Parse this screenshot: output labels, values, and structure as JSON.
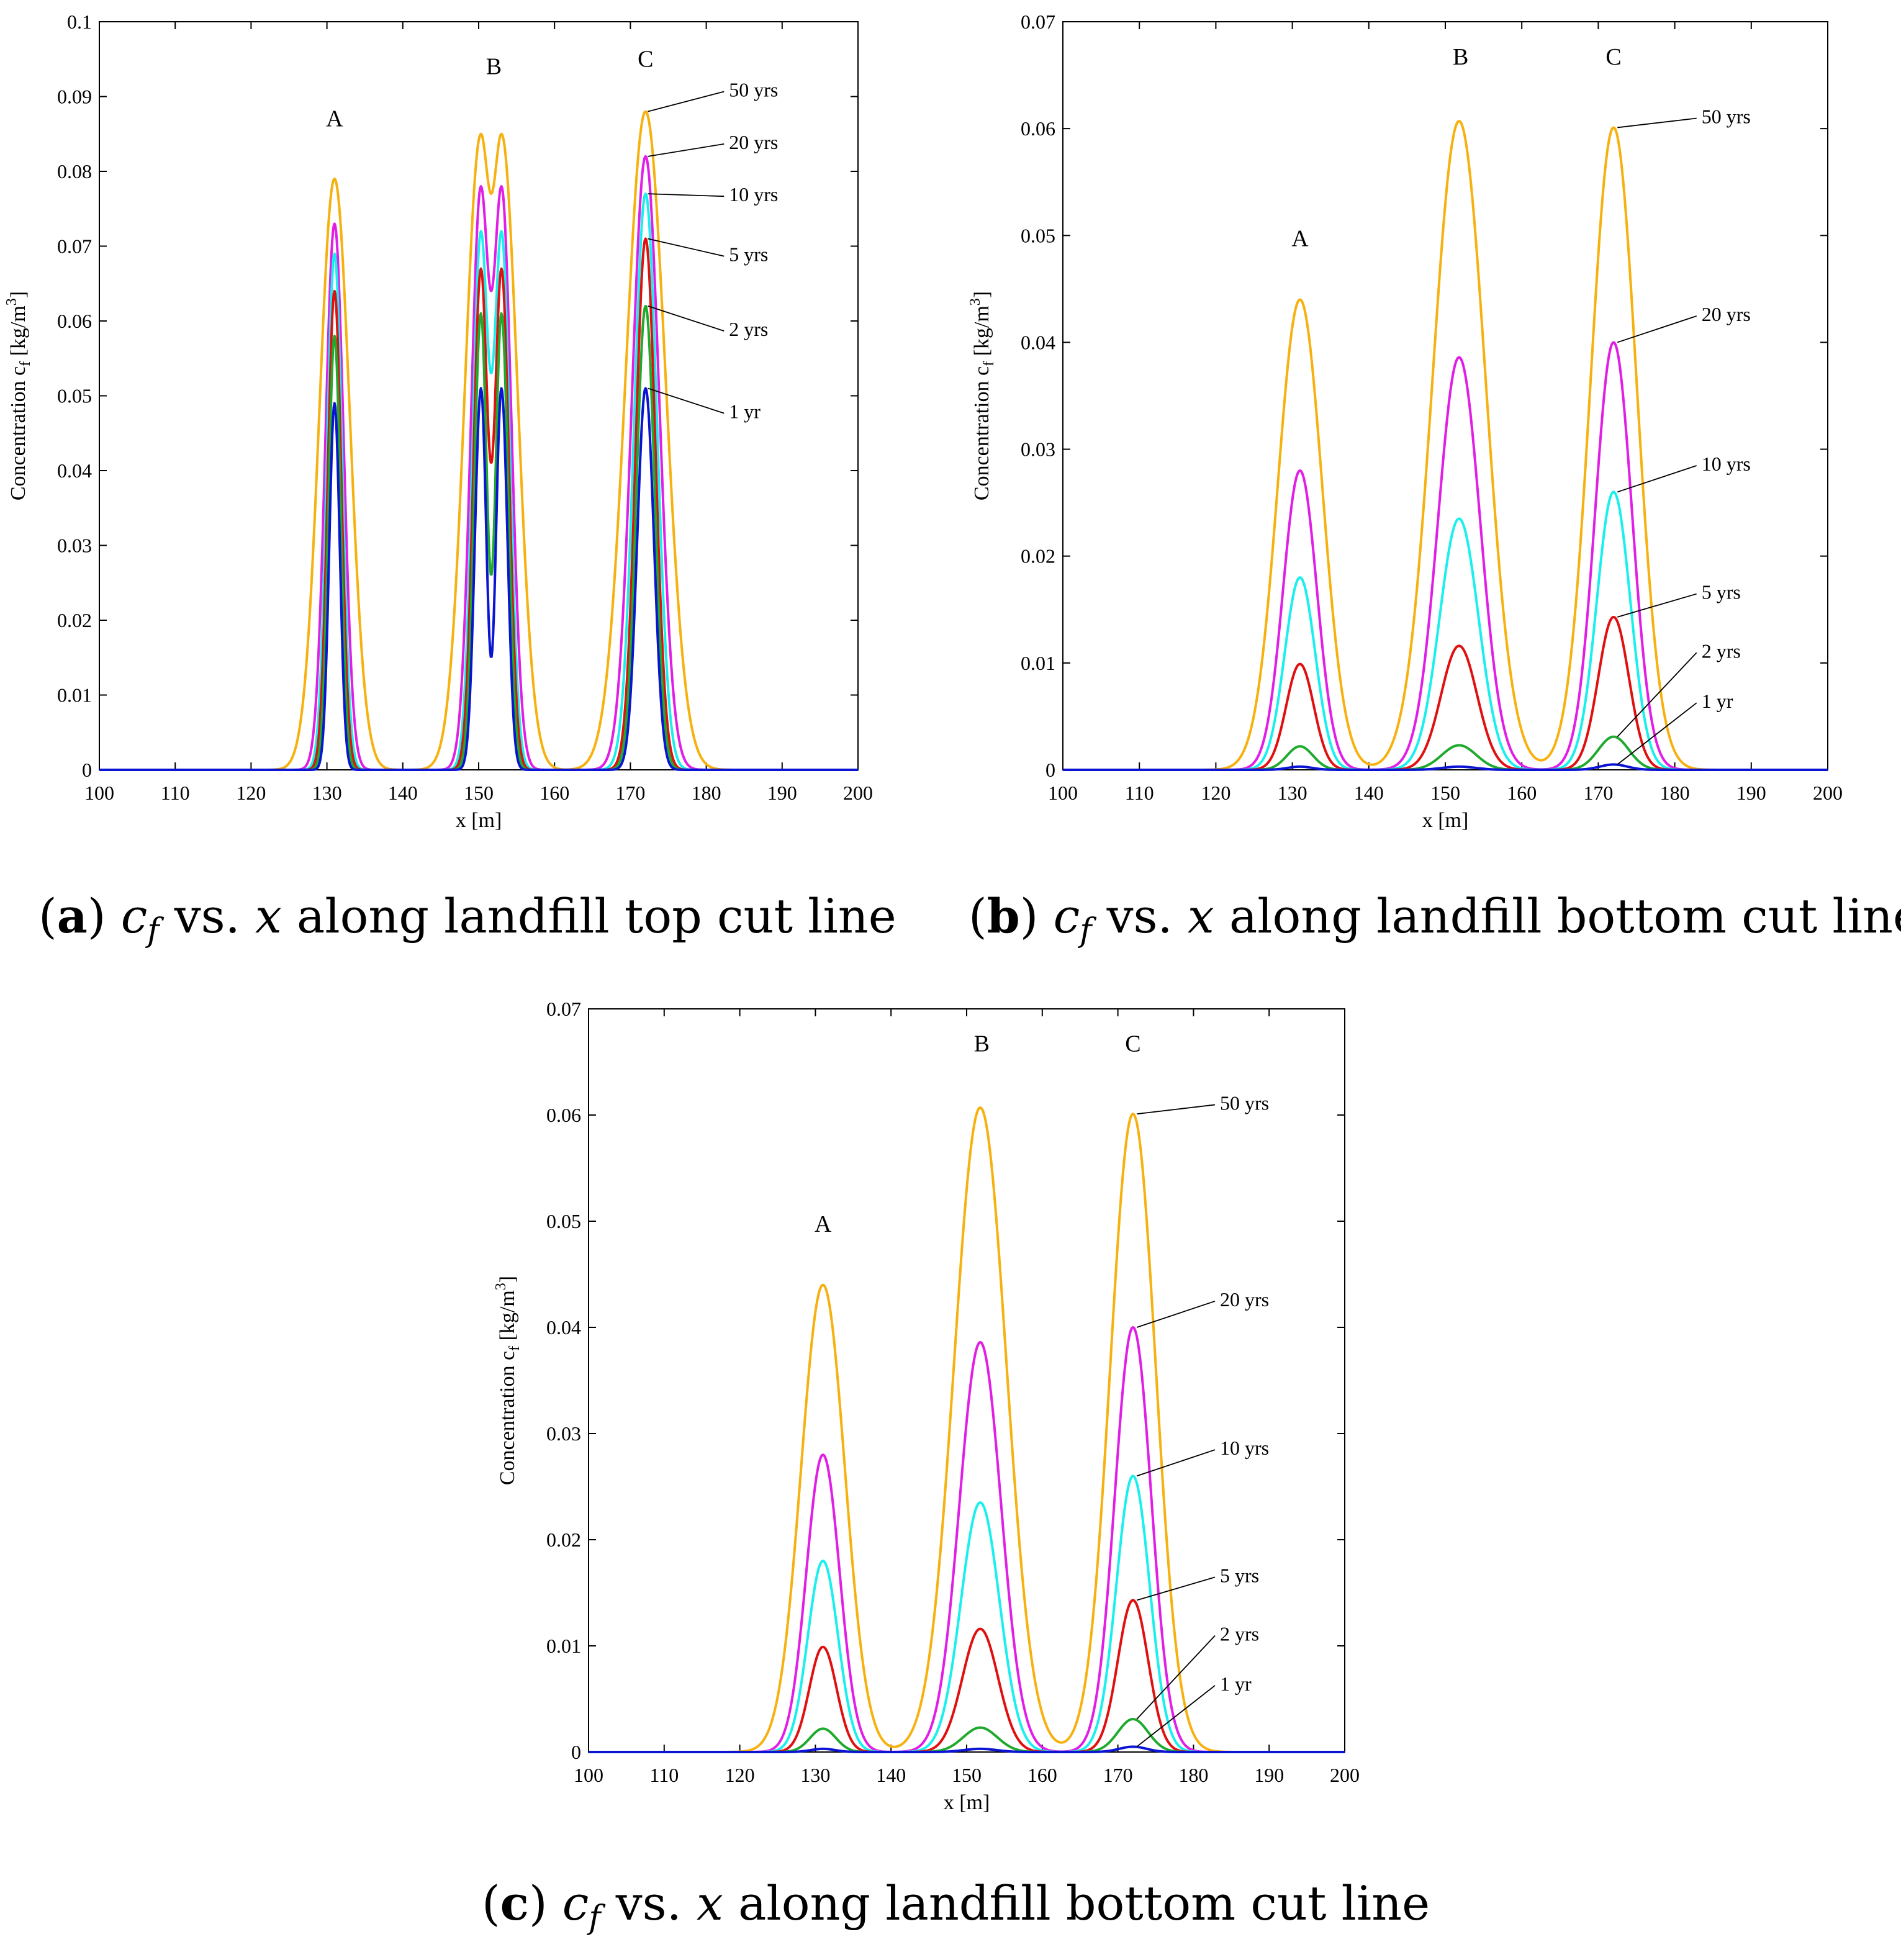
{
  "colors": {
    "1 yr": "#0a14d2",
    "2 yrs": "#1faa2e",
    "5 yrs": "#e01010",
    "10 yrs": "#19f0ee",
    "20 yrs": "#e11ee6",
    "50 yrs": "#f7b10f"
  },
  "captions": [
    {
      "id": "a",
      "label": "a",
      "var1": "c",
      "sub": "f",
      "mid": "vs.",
      "var2": "x",
      "rest": "along landfill top cut line"
    },
    {
      "id": "b",
      "label": "b",
      "var1": "c",
      "sub": "f",
      "mid": "vs.",
      "var2": "x",
      "rest": "along landfill bottom cut line"
    },
    {
      "id": "c",
      "label": "c",
      "var1": "c",
      "sub": "f",
      "mid": "vs.",
      "var2": "x",
      "rest": "along landfill bottom cut line"
    }
  ],
  "chart_data": [
    {
      "id": "a",
      "type": "line",
      "xlabel": "x [m]",
      "ylabel_main": "Concentration c",
      "ylabel_sub": "f",
      "ylabel_unit": " [kg/m",
      "ylabel_sup": "3",
      "ylabel_end": "]",
      "xlim": [
        100,
        200
      ],
      "ylim": [
        0,
        0.1
      ],
      "xticks": [
        "100",
        "110",
        "120",
        "130",
        "140",
        "150",
        "160",
        "170",
        "180",
        "190",
        "200"
      ],
      "yticks": [
        "0",
        "0.01",
        "0.02",
        "0.03",
        "0.04",
        "0.05",
        "0.06",
        "0.07",
        "0.08",
        "0.09",
        "0.1"
      ],
      "peak_labels": [
        {
          "text": "A",
          "x": 131,
          "y": 0.086
        },
        {
          "text": "B",
          "x": 152,
          "y": 0.093
        },
        {
          "text": "C",
          "x": 172,
          "y": 0.094
        }
      ],
      "series": [
        {
          "name": "1 yr",
          "sigmaA": 0.7,
          "sigmaC": 1.1,
          "peaks": [
            0.049,
            0.051,
            0.051
          ],
          "valleyB": 0.015,
          "label": "1 yr",
          "label_pos": [
            183,
            0.047
          ],
          "arrow_to": [
            172.3,
            0.051
          ]
        },
        {
          "name": "2 yrs",
          "sigmaA": 0.8,
          "sigmaC": 1.2,
          "peaks": [
            0.058,
            0.061,
            0.062
          ],
          "valleyB": 0.026,
          "label": "2 yrs",
          "label_pos": [
            183,
            0.058
          ],
          "arrow_to": [
            172.3,
            0.062
          ]
        },
        {
          "name": "5 yrs",
          "sigmaA": 0.9,
          "sigmaC": 1.3,
          "peaks": [
            0.064,
            0.067,
            0.071
          ],
          "valleyB": 0.041,
          "label": "5 yrs",
          "label_pos": [
            183,
            0.068
          ],
          "arrow_to": [
            172.3,
            0.071
          ]
        },
        {
          "name": "10 yrs",
          "sigmaA": 1.0,
          "sigmaC": 1.5,
          "peaks": [
            0.069,
            0.072,
            0.077
          ],
          "valleyB": 0.053,
          "label": "10 yrs",
          "label_pos": [
            183,
            0.076
          ],
          "arrow_to": [
            172.3,
            0.077
          ]
        },
        {
          "name": "20 yrs",
          "sigmaA": 1.2,
          "sigmaC": 1.8,
          "peaks": [
            0.073,
            0.078,
            0.082
          ],
          "valleyB": 0.064,
          "label": "20 yrs",
          "label_pos": [
            183,
            0.083
          ],
          "arrow_to": [
            172.3,
            0.082
          ]
        },
        {
          "name": "50 yrs",
          "sigmaA": 2.0,
          "sigmaC": 2.6,
          "peaks": [
            0.079,
            0.085,
            0.088
          ],
          "valleyB": 0.077,
          "label": "50 yrs",
          "label_pos": [
            183,
            0.09
          ],
          "arrow_to": [
            172.3,
            0.088
          ]
        }
      ]
    },
    {
      "id": "b",
      "type": "line",
      "xlabel": "x [m]",
      "ylabel_main": "Concentration c",
      "ylabel_sub": "f",
      "ylabel_unit": " [kg/m",
      "ylabel_sup": "3",
      "ylabel_end": "]",
      "xlim": [
        100,
        200
      ],
      "ylim": [
        0,
        0.07
      ],
      "xticks": [
        "100",
        "110",
        "120",
        "130",
        "140",
        "150",
        "160",
        "170",
        "180",
        "190",
        "200"
      ],
      "yticks": [
        "0",
        "0.01",
        "0.02",
        "0.03",
        "0.04",
        "0.05",
        "0.06",
        "0.07"
      ],
      "peak_labels": [
        {
          "text": "A",
          "x": 131,
          "y": 0.049
        },
        {
          "text": "B",
          "x": 152,
          "y": 0.066
        },
        {
          "text": "C",
          "x": 172,
          "y": 0.066
        }
      ],
      "series": [
        {
          "name": "1 yr",
          "sigmaA": 1.6,
          "sigmaC": 1.8,
          "peaks": [
            0.0003,
            0.0003,
            0.0005
          ],
          "label": "1 yr",
          "label_pos": [
            183.5,
            0.0058
          ],
          "arrow_to": [
            172.5,
            0.0005
          ]
        },
        {
          "name": "2 yrs",
          "sigmaA": 1.7,
          "sigmaC": 2.0,
          "peaks": [
            0.0022,
            0.0023,
            0.0031
          ],
          "label": "2 yrs",
          "label_pos": [
            183.5,
            0.0105
          ],
          "arrow_to": [
            172.5,
            0.0031
          ]
        },
        {
          "name": "5 yrs",
          "sigmaA": 1.8,
          "sigmaC": 2.0,
          "peaks": [
            0.0099,
            0.0116,
            0.0143
          ],
          "label": "5 yrs",
          "label_pos": [
            183.5,
            0.016
          ],
          "arrow_to": [
            172.5,
            0.0143
          ]
        },
        {
          "name": "10 yrs",
          "sigmaA": 2.0,
          "sigmaC": 2.2,
          "peaks": [
            0.018,
            0.0235,
            0.026
          ],
          "label": "10 yrs",
          "label_pos": [
            183.5,
            0.028
          ],
          "arrow_to": [
            172.5,
            0.026
          ]
        },
        {
          "name": "20 yrs",
          "sigmaA": 2.2,
          "sigmaC": 2.4,
          "peaks": [
            0.028,
            0.0386,
            0.04
          ],
          "label": "20 yrs",
          "label_pos": [
            183.5,
            0.042
          ],
          "arrow_to": [
            172.5,
            0.04
          ]
        },
        {
          "name": "50 yrs",
          "sigmaA": 2.9,
          "sigmaC": 3.0,
          "peaks": [
            0.044,
            0.0607,
            0.0601
          ],
          "label": "50 yrs",
          "label_pos": [
            183.5,
            0.0605
          ],
          "arrow_to": [
            172.5,
            0.0601
          ]
        }
      ]
    },
    {
      "id": "c",
      "type": "line",
      "xlabel": "x [m]",
      "ylabel_main": "Concentration c",
      "ylabel_sub": "f",
      "ylabel_unit": " [kg/m",
      "ylabel_sup": "3",
      "ylabel_end": "]",
      "xlim": [
        100,
        200
      ],
      "ylim": [
        0,
        0.07
      ],
      "xticks": [
        "100",
        "110",
        "120",
        "130",
        "140",
        "150",
        "160",
        "170",
        "180",
        "190",
        "200"
      ],
      "yticks": [
        "0",
        "0.01",
        "0.02",
        "0.03",
        "0.04",
        "0.05",
        "0.06",
        "0.07"
      ],
      "peak_labels": [
        {
          "text": "A",
          "x": 131,
          "y": 0.049
        },
        {
          "text": "B",
          "x": 152,
          "y": 0.066
        },
        {
          "text": "C",
          "x": 172,
          "y": 0.066
        }
      ],
      "series": [
        {
          "name": "1 yr",
          "sigmaA": 1.6,
          "sigmaC": 1.8,
          "peaks": [
            0.0003,
            0.0003,
            0.0005
          ],
          "label": "1 yr",
          "label_pos": [
            183.5,
            0.0058
          ],
          "arrow_to": [
            172.5,
            0.0005
          ]
        },
        {
          "name": "2 yrs",
          "sigmaA": 1.7,
          "sigmaC": 2.0,
          "peaks": [
            0.0022,
            0.0023,
            0.0031
          ],
          "label": "2 yrs",
          "label_pos": [
            183.5,
            0.0105
          ],
          "arrow_to": [
            172.5,
            0.0031
          ]
        },
        {
          "name": "5 yrs",
          "sigmaA": 1.8,
          "sigmaC": 2.0,
          "peaks": [
            0.0099,
            0.0116,
            0.0143
          ],
          "label": "5 yrs",
          "label_pos": [
            183.5,
            0.016
          ],
          "arrow_to": [
            172.5,
            0.0143
          ]
        },
        {
          "name": "10 yrs",
          "sigmaA": 2.0,
          "sigmaC": 2.2,
          "peaks": [
            0.018,
            0.0235,
            0.026
          ],
          "label": "10 yrs",
          "label_pos": [
            183.5,
            0.028
          ],
          "arrow_to": [
            172.5,
            0.026
          ]
        },
        {
          "name": "20 yrs",
          "sigmaA": 2.2,
          "sigmaC": 2.4,
          "peaks": [
            0.028,
            0.0386,
            0.04
          ],
          "label": "20 yrs",
          "label_pos": [
            183.5,
            0.042
          ],
          "arrow_to": [
            172.5,
            0.04
          ]
        },
        {
          "name": "50 yrs",
          "sigmaA": 2.9,
          "sigmaC": 3.0,
          "peaks": [
            0.044,
            0.0607,
            0.0601
          ],
          "label": "50 yrs",
          "label_pos": [
            183.5,
            0.0605
          ],
          "arrow_to": [
            172.5,
            0.0601
          ]
        }
      ]
    }
  ]
}
